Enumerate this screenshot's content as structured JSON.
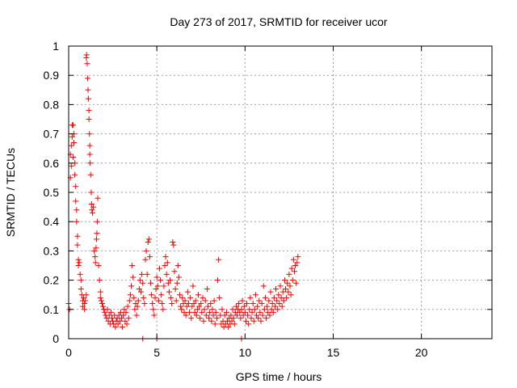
{
  "chart_data": {
    "type": "scatter",
    "title": "Day 273 of 2017, SRMTID for receiver ucor",
    "xlabel": "GPS time / hours",
    "ylabel": "SRMTID / TECUs",
    "xlim": [
      0,
      24
    ],
    "ylim": [
      0,
      1
    ],
    "grid": true,
    "x_ticks": [
      {
        "value": 0,
        "label": "0"
      },
      {
        "value": 5,
        "label": "5"
      },
      {
        "value": 10,
        "label": "10"
      },
      {
        "value": 15,
        "label": "15"
      },
      {
        "value": 20,
        "label": "20"
      }
    ],
    "y_ticks": [
      {
        "value": 0,
        "label": "0"
      },
      {
        "value": 0.1,
        "label": "0.1"
      },
      {
        "value": 0.2,
        "label": "0.2"
      },
      {
        "value": 0.3,
        "label": "0.3"
      },
      {
        "value": 0.4,
        "label": "0.4"
      },
      {
        "value": 0.5,
        "label": "0.5"
      },
      {
        "value": 0.6,
        "label": "0.6"
      },
      {
        "value": 0.7,
        "label": "0.7"
      },
      {
        "value": 0.8,
        "label": "0.8"
      },
      {
        "value": 0.9,
        "label": "0.9"
      },
      {
        "value": 1,
        "label": "1"
      }
    ],
    "series": [
      {
        "name": "SRMTID",
        "color": "#ff0000",
        "marker": "plus",
        "points": [
          [
            0.0,
            0.12
          ],
          [
            0.05,
            0.1
          ],
          [
            0.1,
            0.55
          ],
          [
            0.1,
            0.63
          ],
          [
            0.15,
            0.66
          ],
          [
            0.15,
            0.59
          ],
          [
            0.2,
            0.73
          ],
          [
            0.2,
            0.69
          ],
          [
            0.25,
            0.62
          ],
          [
            0.25,
            0.73
          ],
          [
            0.3,
            0.7
          ],
          [
            0.3,
            0.67
          ],
          [
            0.35,
            0.6
          ],
          [
            0.35,
            0.56
          ],
          [
            0.4,
            0.52
          ],
          [
            0.4,
            0.47
          ],
          [
            0.45,
            0.44
          ],
          [
            0.45,
            0.4
          ],
          [
            0.5,
            0.35
          ],
          [
            0.5,
            0.32
          ],
          [
            0.55,
            0.27
          ],
          [
            0.55,
            0.25
          ],
          [
            0.6,
            0.26
          ],
          [
            0.65,
            0.22
          ],
          [
            0.7,
            0.2
          ],
          [
            0.7,
            0.17
          ],
          [
            0.75,
            0.15
          ],
          [
            0.8,
            0.13
          ],
          [
            0.8,
            0.11
          ],
          [
            0.85,
            0.14
          ],
          [
            0.9,
            0.12
          ],
          [
            0.9,
            0.1
          ],
          [
            0.95,
            0.13
          ],
          [
            1.0,
            0.15
          ],
          [
            1.0,
            0.96
          ],
          [
            1.02,
            0.97
          ],
          [
            1.05,
            0.94
          ],
          [
            1.08,
            0.89
          ],
          [
            1.1,
            0.85
          ],
          [
            1.12,
            0.82
          ],
          [
            1.15,
            0.78
          ],
          [
            1.15,
            0.75
          ],
          [
            1.18,
            0.7
          ],
          [
            1.2,
            0.66
          ],
          [
            1.2,
            0.63
          ],
          [
            1.22,
            0.6
          ],
          [
            1.25,
            0.56
          ],
          [
            1.28,
            0.5
          ],
          [
            1.3,
            0.46
          ],
          [
            1.32,
            0.44
          ],
          [
            1.35,
            0.43
          ],
          [
            1.4,
            0.45
          ],
          [
            1.45,
            0.3
          ],
          [
            1.5,
            0.28
          ],
          [
            1.52,
            0.26
          ],
          [
            1.55,
            0.31
          ],
          [
            1.58,
            0.34
          ],
          [
            1.6,
            0.36
          ],
          [
            1.62,
            0.4
          ],
          [
            1.65,
            0.48
          ],
          [
            1.7,
            0.25
          ],
          [
            1.75,
            0.2
          ],
          [
            1.8,
            0.16
          ],
          [
            1.8,
            0.14
          ],
          [
            1.85,
            0.13
          ],
          [
            1.9,
            0.12
          ],
          [
            1.95,
            0.11
          ],
          [
            2.0,
            0.1
          ],
          [
            2.05,
            0.09
          ],
          [
            2.1,
            0.08
          ],
          [
            2.15,
            0.07
          ],
          [
            2.2,
            0.1
          ],
          [
            2.25,
            0.06
          ],
          [
            2.3,
            0.08
          ],
          [
            2.35,
            0.05
          ],
          [
            2.4,
            0.09
          ],
          [
            2.45,
            0.07
          ],
          [
            2.5,
            0.06
          ],
          [
            2.55,
            0.05
          ],
          [
            2.6,
            0.08
          ],
          [
            2.65,
            0.04
          ],
          [
            2.7,
            0.06
          ],
          [
            2.75,
            0.07
          ],
          [
            2.8,
            0.05
          ],
          [
            2.85,
            0.08
          ],
          [
            2.9,
            0.06
          ],
          [
            2.95,
            0.09
          ],
          [
            3.0,
            0.07
          ],
          [
            3.05,
            0.04
          ],
          [
            3.1,
            0.08
          ],
          [
            3.15,
            0.1
          ],
          [
            3.2,
            0.06
          ],
          [
            3.25,
            0.09
          ],
          [
            3.3,
            0.05
          ],
          [
            3.35,
            0.11
          ],
          [
            3.4,
            0.07
          ],
          [
            3.45,
            0.13
          ],
          [
            3.5,
            0.15
          ],
          [
            3.55,
            0.18
          ],
          [
            3.6,
            0.25
          ],
          [
            3.65,
            0.21
          ],
          [
            3.7,
            0.14
          ],
          [
            3.75,
            0.1
          ],
          [
            3.8,
            0.12
          ],
          [
            3.85,
            0.08
          ],
          [
            3.9,
            0.11
          ],
          [
            3.95,
            0.13
          ],
          [
            4.0,
            0.17
          ],
          [
            4.05,
            0.2
          ],
          [
            4.1,
            0.16
          ],
          [
            4.15,
            0.22
          ],
          [
            4.2,
            0.19
          ],
          [
            4.25,
            0.14
          ],
          [
            4.3,
            0.12
          ],
          [
            4.35,
            0.27
          ],
          [
            4.4,
            0.3
          ],
          [
            4.45,
            0.22
          ],
          [
            4.5,
            0.33
          ],
          [
            4.55,
            0.34
          ],
          [
            4.6,
            0.28
          ],
          [
            4.65,
            0.19
          ],
          [
            4.7,
            0.15
          ],
          [
            4.75,
            0.12
          ],
          [
            4.8,
            0.1
          ],
          [
            4.85,
            0.08
          ],
          [
            4.9,
            0.14
          ],
          [
            4.95,
            0.17
          ],
          [
            5.0,
            0.21
          ],
          [
            5.05,
            0.18
          ],
          [
            5.1,
            0.13
          ],
          [
            5.15,
            0.24
          ],
          [
            5.2,
            0.2
          ],
          [
            5.25,
            0.15
          ],
          [
            5.3,
            0.12
          ],
          [
            5.35,
            0.1
          ],
          [
            5.4,
            0.18
          ],
          [
            5.45,
            0.25
          ],
          [
            5.5,
            0.28
          ],
          [
            5.55,
            0.22
          ],
          [
            5.6,
            0.26
          ],
          [
            5.65,
            0.19
          ],
          [
            5.7,
            0.16
          ],
          [
            5.75,
            0.2
          ],
          [
            5.8,
            0.14
          ],
          [
            5.85,
            0.12
          ],
          [
            5.9,
            0.33
          ],
          [
            5.95,
            0.32
          ],
          [
            6.0,
            0.23
          ],
          [
            6.05,
            0.17
          ],
          [
            6.1,
            0.13
          ],
          [
            6.15,
            0.19
          ],
          [
            6.2,
            0.25
          ],
          [
            6.25,
            0.21
          ],
          [
            6.3,
            0.15
          ],
          [
            6.35,
            0.11
          ],
          [
            6.4,
            0.1
          ],
          [
            6.45,
            0.14
          ],
          [
            6.5,
            0.12
          ],
          [
            6.55,
            0.09
          ],
          [
            6.6,
            0.13
          ],
          [
            6.65,
            0.08
          ],
          [
            6.7,
            0.11
          ],
          [
            6.75,
            0.16
          ],
          [
            6.8,
            0.12
          ],
          [
            6.85,
            0.09
          ],
          [
            6.9,
            0.14
          ],
          [
            6.95,
            0.07
          ],
          [
            7.0,
            0.11
          ],
          [
            7.05,
            0.18
          ],
          [
            7.1,
            0.12
          ],
          [
            7.15,
            0.09
          ],
          [
            7.2,
            0.13
          ],
          [
            7.25,
            0.08
          ],
          [
            7.3,
            0.1
          ],
          [
            7.35,
            0.15
          ],
          [
            7.4,
            0.11
          ],
          [
            7.45,
            0.07
          ],
          [
            7.5,
            0.12
          ],
          [
            7.55,
            0.09
          ],
          [
            7.6,
            0.14
          ],
          [
            7.65,
            0.06
          ],
          [
            7.7,
            0.1
          ],
          [
            7.75,
            0.13
          ],
          [
            7.8,
            0.08
          ],
          [
            7.85,
            0.17
          ],
          [
            7.9,
            0.11
          ],
          [
            7.95,
            0.07
          ],
          [
            8.0,
            0.09
          ],
          [
            8.05,
            0.12
          ],
          [
            8.1,
            0.06
          ],
          [
            8.15,
            0.1
          ],
          [
            8.2,
            0.08
          ],
          [
            8.25,
            0.13
          ],
          [
            8.3,
            0.05
          ],
          [
            8.35,
            0.09
          ],
          [
            8.4,
            0.07
          ],
          [
            8.45,
            0.2
          ],
          [
            8.5,
            0.27
          ],
          [
            8.55,
            0.14
          ],
          [
            8.6,
            0.08
          ],
          [
            8.65,
            0.05
          ],
          [
            8.7,
            0.1
          ],
          [
            8.75,
            0.06
          ],
          [
            8.8,
            0.04
          ],
          [
            8.85,
            0.08
          ],
          [
            8.9,
            0.05
          ],
          [
            8.95,
            0.09
          ],
          [
            9.0,
            0.06
          ],
          [
            9.05,
            0.04
          ],
          [
            9.1,
            0.07
          ],
          [
            9.15,
            0.05
          ],
          [
            9.2,
            0.08
          ],
          [
            9.25,
            0.06
          ],
          [
            9.3,
            0.1
          ],
          [
            9.35,
            0.07
          ],
          [
            9.4,
            0.05
          ],
          [
            9.45,
            0.09
          ],
          [
            9.5,
            0.11
          ],
          [
            9.55,
            0.08
          ],
          [
            9.6,
            0.1
          ],
          [
            9.65,
            0.12
          ],
          [
            9.7,
            0.09
          ],
          [
            9.75,
            0.07
          ],
          [
            9.8,
            0.1
          ],
          [
            9.85,
            0.13
          ],
          [
            9.9,
            0.08
          ],
          [
            9.95,
            0.11
          ],
          [
            10.0,
            0.09
          ],
          [
            10.05,
            0.06
          ],
          [
            10.1,
            0.12
          ],
          [
            10.15,
            0.08
          ],
          [
            10.2,
            0.05
          ],
          [
            10.25,
            0.1
          ],
          [
            10.3,
            0.14
          ],
          [
            10.35,
            0.07
          ],
          [
            10.4,
            0.09
          ],
          [
            10.45,
            0.12
          ],
          [
            10.5,
            0.06
          ],
          [
            10.55,
            0.1
          ],
          [
            10.6,
            0.15
          ],
          [
            10.65,
            0.08
          ],
          [
            10.7,
            0.11
          ],
          [
            10.75,
            0.07
          ],
          [
            10.8,
            0.13
          ],
          [
            10.85,
            0.09
          ],
          [
            10.9,
            0.06
          ],
          [
            10.95,
            0.12
          ],
          [
            11.0,
            0.08
          ],
          [
            11.05,
            0.18
          ],
          [
            11.1,
            0.1
          ],
          [
            11.15,
            0.14
          ],
          [
            11.2,
            0.07
          ],
          [
            11.25,
            0.11
          ],
          [
            11.3,
            0.09
          ],
          [
            11.35,
            0.13
          ],
          [
            11.4,
            0.08
          ],
          [
            11.45,
            0.16
          ],
          [
            11.5,
            0.1
          ],
          [
            11.55,
            0.12
          ],
          [
            11.6,
            0.09
          ],
          [
            11.65,
            0.14
          ],
          [
            11.7,
            0.11
          ],
          [
            11.75,
            0.17
          ],
          [
            11.8,
            0.13
          ],
          [
            11.85,
            0.1
          ],
          [
            11.9,
            0.15
          ],
          [
            11.95,
            0.12
          ],
          [
            12.0,
            0.18
          ],
          [
            12.05,
            0.14
          ],
          [
            12.1,
            0.11
          ],
          [
            12.15,
            0.16
          ],
          [
            12.2,
            0.13
          ],
          [
            12.25,
            0.2
          ],
          [
            12.3,
            0.17
          ],
          [
            12.35,
            0.14
          ],
          [
            12.4,
            0.19
          ],
          [
            12.45,
            0.16
          ],
          [
            12.5,
            0.22
          ],
          [
            12.55,
            0.18
          ],
          [
            12.6,
            0.15
          ],
          [
            12.65,
            0.24
          ],
          [
            12.7,
            0.2
          ],
          [
            12.75,
            0.27
          ],
          [
            12.8,
            0.23
          ],
          [
            12.85,
            0.25
          ],
          [
            12.9,
            0.19
          ],
          [
            12.95,
            0.26
          ],
          [
            13.0,
            0.28
          ],
          [
            4.2,
            0.0
          ],
          [
            5.0,
            0.0
          ],
          [
            9.8,
            0.0
          ]
        ]
      }
    ]
  }
}
